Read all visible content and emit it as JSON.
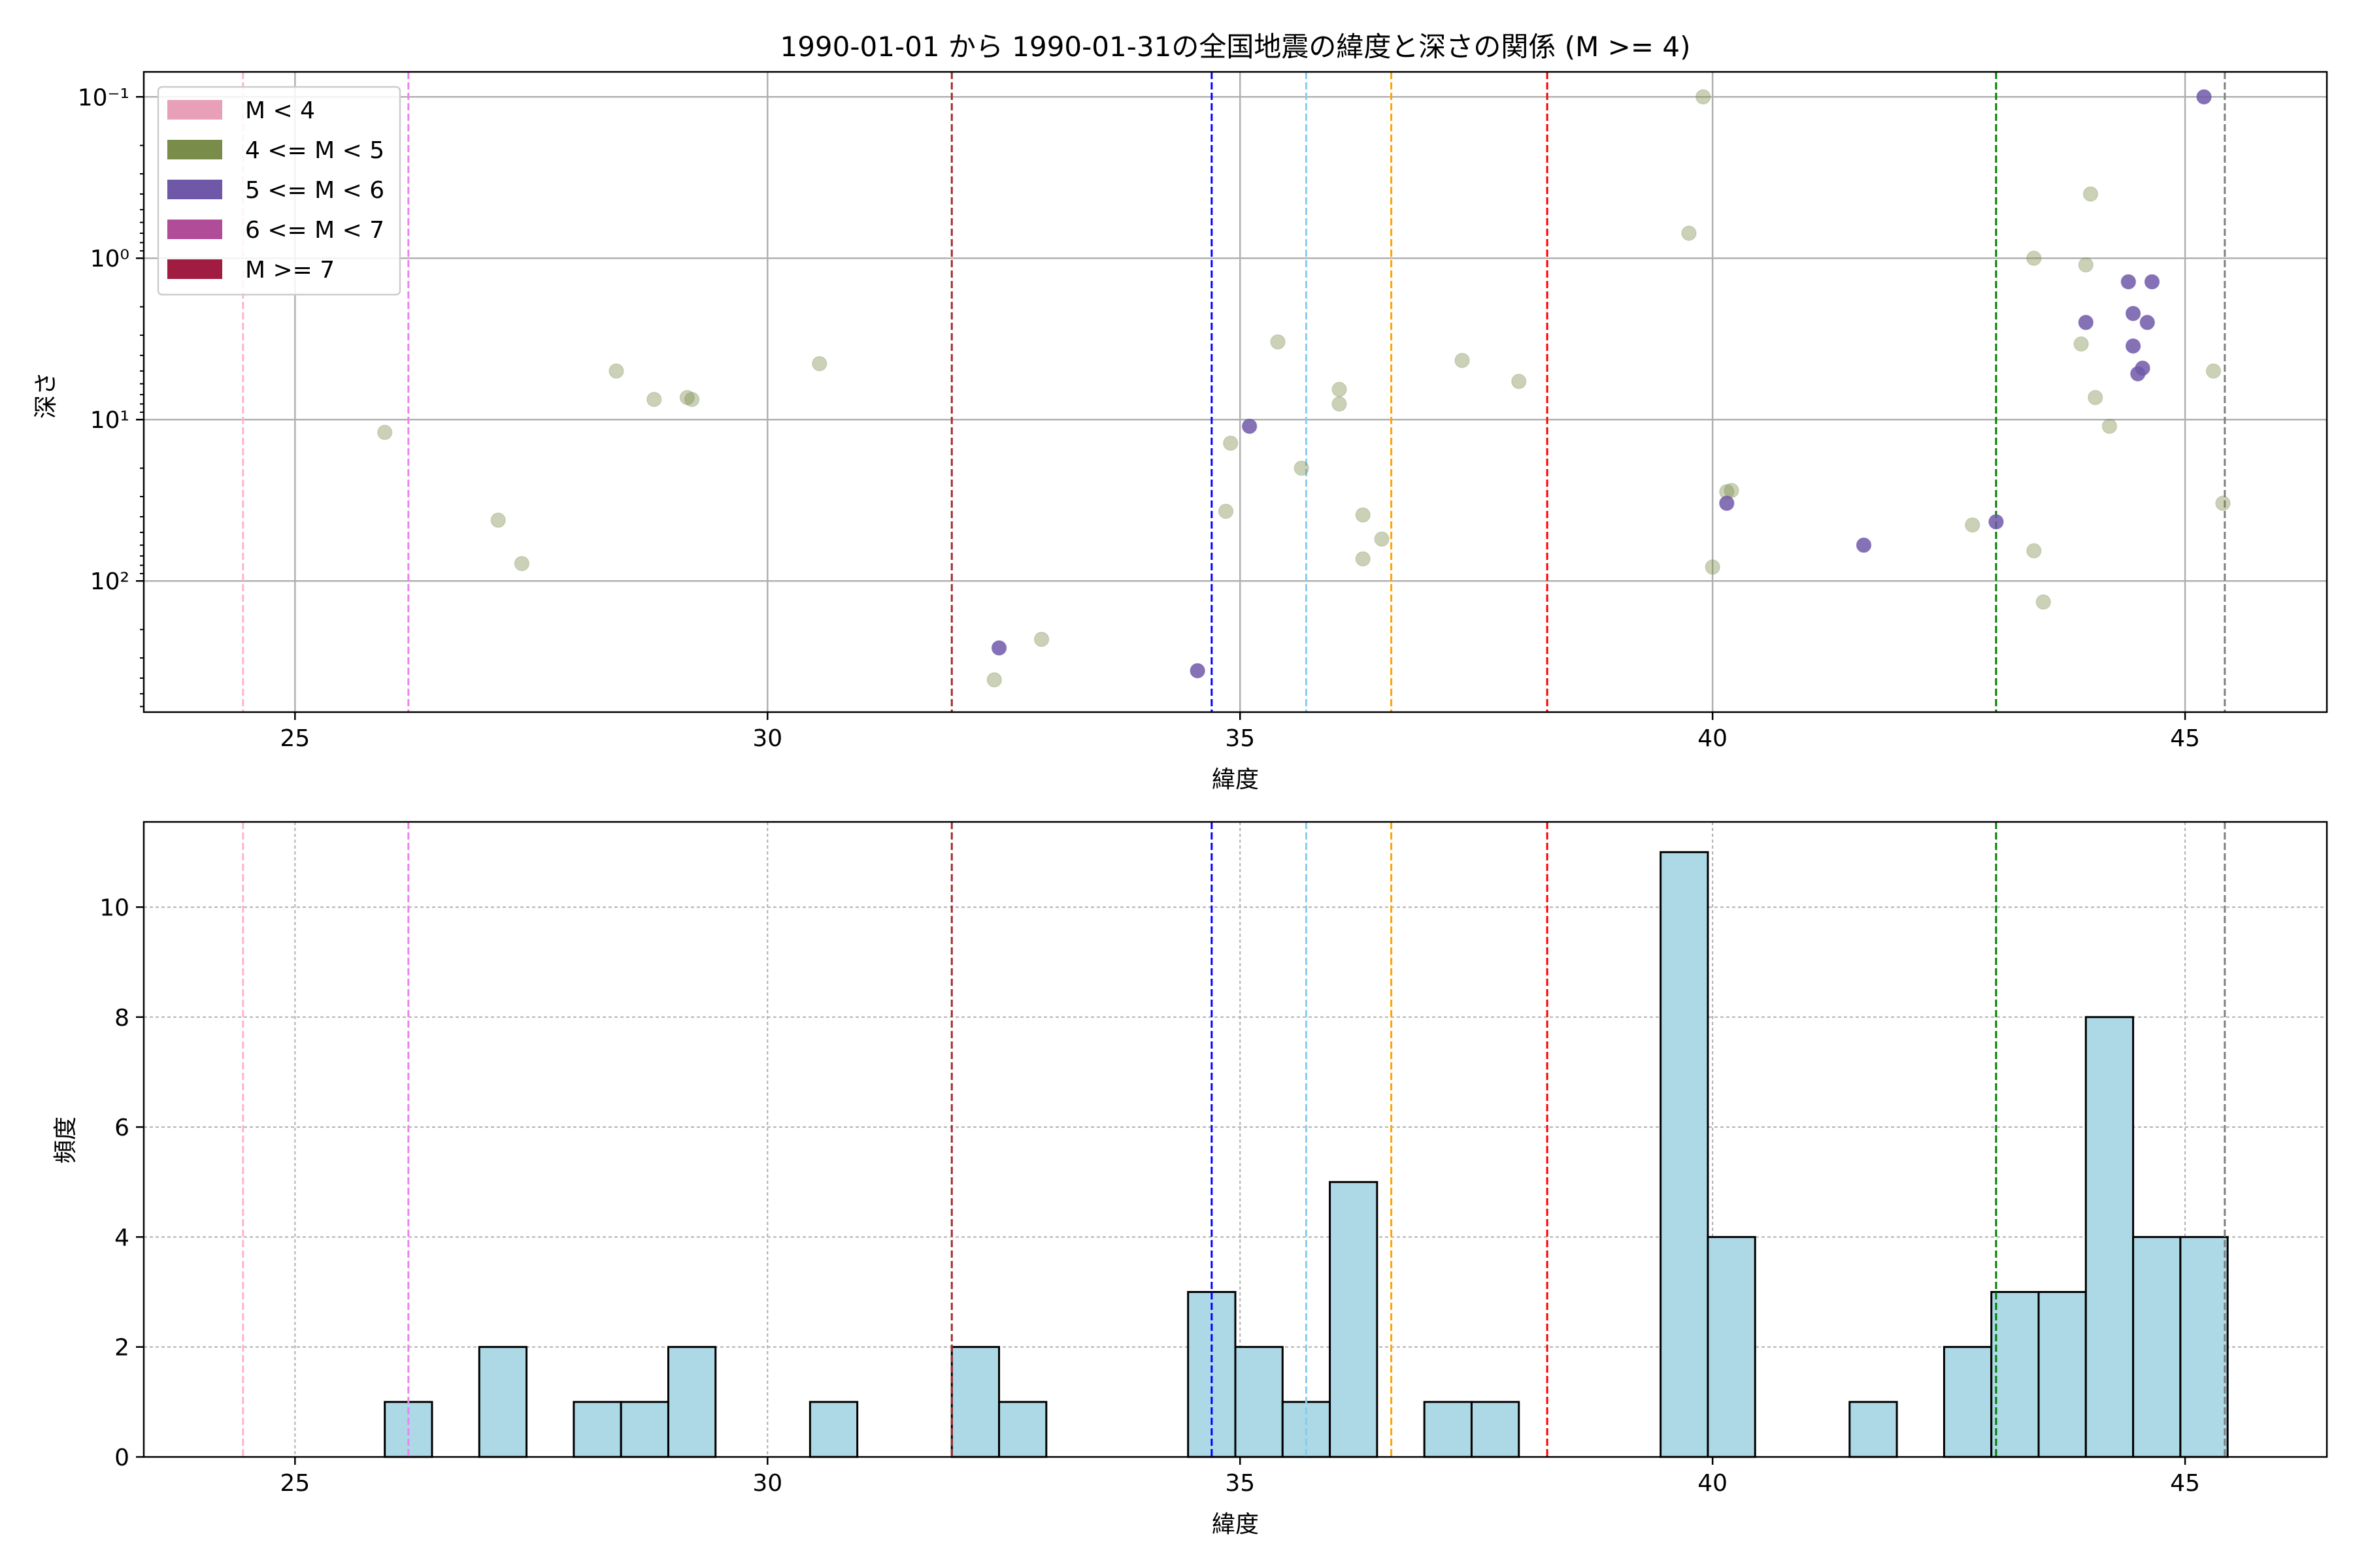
{
  "chart_data": [
    {
      "type": "scatter",
      "title": "1990-01-01 から 1990-01-31の全国地震の緯度と深さの関係 (M >= 4)",
      "xlabel": "緯度",
      "ylabel": "深さ",
      "xlim": [
        23.4,
        46.5
      ],
      "ylim": [
        0.07,
        650
      ],
      "y_scale": "log",
      "y_inverted": true,
      "grid": true,
      "legend_position": "top-left",
      "x_ticks": [
        25,
        30,
        35,
        40,
        45
      ],
      "y_ticks": [
        {
          "value": 0.1,
          "label": "10⁻¹"
        },
        {
          "value": 1,
          "label": "10⁰"
        },
        {
          "value": 10,
          "label": "10¹"
        },
        {
          "value": 100,
          "label": "10²"
        }
      ],
      "legend": [
        {
          "label": "M < 4",
          "color": "#e8a0b8"
        },
        {
          "label": "4 <= M < 5",
          "color": "#7a8c4a"
        },
        {
          "label": "5 <= M < 6",
          "color": "#7058a8"
        },
        {
          "label": "6 <= M < 7",
          "color": "#b04c98"
        },
        {
          "label": "M >= 7",
          "color": "#a01c40"
        }
      ],
      "reference_lines": [
        {
          "x": 24.45,
          "color": "#ffb6c8"
        },
        {
          "x": 26.2,
          "color": "#ee82ee"
        },
        {
          "x": 31.95,
          "color": "#a52a2a"
        },
        {
          "x": 34.7,
          "color": "#0000ff"
        },
        {
          "x": 35.7,
          "color": "#87ceeb"
        },
        {
          "x": 36.6,
          "color": "#ffa500"
        },
        {
          "x": 38.25,
          "color": "#ff0000"
        },
        {
          "x": 43.0,
          "color": "#008000"
        },
        {
          "x": 45.42,
          "color": "#808080"
        }
      ],
      "series": [
        {
          "name": "4 <= M < 5",
          "color": "#7a8c4a",
          "points": [
            [
              25.95,
              12
            ],
            [
              27.15,
              42
            ],
            [
              27.4,
              78
            ],
            [
              28.4,
              5
            ],
            [
              28.8,
              7.5
            ],
            [
              29.15,
              7.3
            ],
            [
              29.2,
              7.5
            ],
            [
              30.55,
              4.5
            ],
            [
              32.4,
              410
            ],
            [
              32.9,
              230
            ],
            [
              34.85,
              37
            ],
            [
              34.9,
              14
            ],
            [
              35.4,
              3.3
            ],
            [
              35.65,
              20
            ],
            [
              36.05,
              6.5
            ],
            [
              36.05,
              8
            ],
            [
              36.3,
              39
            ],
            [
              36.3,
              73
            ],
            [
              36.5,
              55
            ],
            [
              37.35,
              4.3
            ],
            [
              37.95,
              5.8
            ],
            [
              39.75,
              0.7
            ],
            [
              39.9,
              0.1
            ],
            [
              40.0,
              82
            ],
            [
              40.15,
              28
            ],
            [
              40.2,
              27.5
            ],
            [
              42.75,
              45
            ],
            [
              43.4,
              1
            ],
            [
              43.4,
              65
            ],
            [
              43.5,
              135
            ],
            [
              43.9,
              3.4
            ],
            [
              43.95,
              1.1
            ],
            [
              44.0,
              0.4
            ],
            [
              44.05,
              7.3
            ],
            [
              44.2,
              11
            ],
            [
              45.3,
              5
            ],
            [
              45.4,
              33
            ]
          ]
        },
        {
          "name": "5 <= M < 6",
          "color": "#7058a8",
          "points": [
            [
              32.45,
              260
            ],
            [
              34.55,
              360
            ],
            [
              35.1,
              11
            ],
            [
              40.15,
              33
            ],
            [
              41.6,
              60
            ],
            [
              43.0,
              43
            ],
            [
              43.95,
              2.5
            ],
            [
              44.4,
              1.4
            ],
            [
              44.45,
              2.2
            ],
            [
              44.45,
              3.5
            ],
            [
              44.5,
              5.2
            ],
            [
              44.55,
              4.8
            ],
            [
              44.6,
              2.5
            ],
            [
              44.65,
              1.4
            ],
            [
              45.2,
              0.1
            ]
          ]
        }
      ]
    },
    {
      "type": "bar",
      "xlabel": "緯度",
      "ylabel": "頻度",
      "xlim": [
        23.4,
        46.5
      ],
      "ylim": [
        0,
        11.55
      ],
      "grid": true,
      "x_ticks": [
        25,
        30,
        35,
        40,
        45
      ],
      "y_ticks": [
        0,
        2,
        4,
        6,
        8,
        10
      ],
      "bar_color": "#add8e6",
      "bin_width": 0.5,
      "bins": [
        {
          "start": 25.95,
          "count": 1
        },
        {
          "start": 26.95,
          "count": 2
        },
        {
          "start": 27.95,
          "count": 1
        },
        {
          "start": 28.45,
          "count": 1
        },
        {
          "start": 28.95,
          "count": 2
        },
        {
          "start": 30.45,
          "count": 1
        },
        {
          "start": 31.95,
          "count": 2
        },
        {
          "start": 32.45,
          "count": 1
        },
        {
          "start": 34.45,
          "count": 3
        },
        {
          "start": 34.95,
          "count": 2
        },
        {
          "start": 35.45,
          "count": 1
        },
        {
          "start": 35.95,
          "count": 5
        },
        {
          "start": 36.95,
          "count": 1
        },
        {
          "start": 37.45,
          "count": 1
        },
        {
          "start": 39.45,
          "count": 11
        },
        {
          "start": 39.95,
          "count": 4
        },
        {
          "start": 41.45,
          "count": 1
        },
        {
          "start": 42.45,
          "count": 2
        },
        {
          "start": 42.95,
          "count": 3
        },
        {
          "start": 43.45,
          "count": 3
        },
        {
          "start": 43.95,
          "count": 8
        },
        {
          "start": 44.45,
          "count": 4
        },
        {
          "start": 44.95,
          "count": 4
        }
      ],
      "reference_lines": [
        {
          "x": 24.45,
          "color": "#ffb6c8"
        },
        {
          "x": 26.2,
          "color": "#ee82ee"
        },
        {
          "x": 31.95,
          "color": "#a52a2a"
        },
        {
          "x": 34.7,
          "color": "#0000ff"
        },
        {
          "x": 35.7,
          "color": "#87ceeb"
        },
        {
          "x": 36.6,
          "color": "#ffa500"
        },
        {
          "x": 38.25,
          "color": "#ff0000"
        },
        {
          "x": 43.0,
          "color": "#008000"
        },
        {
          "x": 45.42,
          "color": "#808080"
        }
      ]
    }
  ]
}
